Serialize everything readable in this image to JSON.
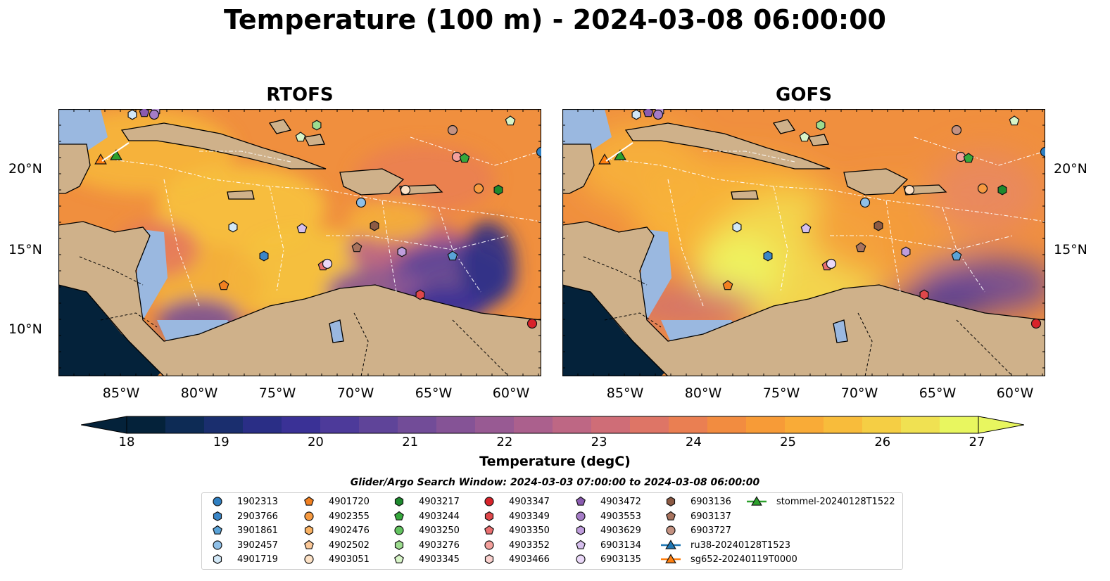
{
  "title": "Temperature (100 m) - 2024-03-08 06:00:00",
  "panels": [
    {
      "title": "RTOFS",
      "variant": "rtofs"
    },
    {
      "title": "GOFS",
      "variant": "gofs"
    }
  ],
  "lat_labels": [
    "20°N",
    "15°N",
    "10°N"
  ],
  "lon_labels": [
    "85°W",
    "80°W",
    "75°W",
    "70°W",
    "65°W",
    "60°W"
  ],
  "colorbar": {
    "label": "Temperature (degC)",
    "ticks": [
      "18",
      "19",
      "20",
      "21",
      "22",
      "23",
      "24",
      "25",
      "26",
      "27"
    ],
    "min": 18,
    "max": 27,
    "colors": [
      "#04223a",
      "#0d2b55",
      "#1a2e6e",
      "#2a2e86",
      "#3a3196",
      "#4d3a9a",
      "#5f4499",
      "#724c98",
      "#855396",
      "#985a93",
      "#ab608d",
      "#be6784",
      "#cf6d77",
      "#de7566",
      "#ea7f52",
      "#f28c40",
      "#f79b37",
      "#f9ab37",
      "#f8bc3b",
      "#f5ce44",
      "#f0e152",
      "#e8f65f"
    ]
  },
  "search_window": "Glider/Argo Search Window: 2024-03-03 07:00:00 to 2024-03-08 06:00:00",
  "legend": [
    {
      "label": "1902313",
      "shape": "circle",
      "color": "#2f7fc1"
    },
    {
      "label": "2903766",
      "shape": "hexagon",
      "color": "#3a86c7"
    },
    {
      "label": "3901861",
      "shape": "pentagon",
      "color": "#5aa3d8"
    },
    {
      "label": "3902457",
      "shape": "circle",
      "color": "#8fc0e8"
    },
    {
      "label": "4901719",
      "shape": "hexagon",
      "color": "#d2e8f7"
    },
    {
      "label": "4901720",
      "shape": "pentagon",
      "color": "#f28020"
    },
    {
      "label": "4902355",
      "shape": "circle",
      "color": "#f79a40"
    },
    {
      "label": "4902476",
      "shape": "hexagon",
      "color": "#f9b263"
    },
    {
      "label": "4902502",
      "shape": "pentagon",
      "color": "#fbc898"
    },
    {
      "label": "4903051",
      "shape": "circle",
      "color": "#fde2c6"
    },
    {
      "label": "4903217",
      "shape": "hexagon",
      "color": "#1e8a2e"
    },
    {
      "label": "4903244",
      "shape": "pentagon",
      "color": "#36a83c"
    },
    {
      "label": "4903250",
      "shape": "circle",
      "color": "#62c35f"
    },
    {
      "label": "4903276",
      "shape": "hexagon",
      "color": "#9ddc8f"
    },
    {
      "label": "4903345",
      "shape": "pentagon",
      "color": "#d8f5c8"
    },
    {
      "label": "4903347",
      "shape": "circle",
      "color": "#d8232a"
    },
    {
      "label": "4903349",
      "shape": "hexagon",
      "color": "#e0474a"
    },
    {
      "label": "4903350",
      "shape": "pentagon",
      "color": "#ea6f70"
    },
    {
      "label": "4903352",
      "shape": "circle",
      "color": "#f4a09c"
    },
    {
      "label": "4903466",
      "shape": "hexagon",
      "color": "#fbd2cf"
    },
    {
      "label": "4903472",
      "shape": "pentagon",
      "color": "#8a5bb0"
    },
    {
      "label": "4903553",
      "shape": "circle",
      "color": "#a57cc6"
    },
    {
      "label": "4903629",
      "shape": "hexagon",
      "color": "#bf9ddc"
    },
    {
      "label": "6903134",
      "shape": "pentagon",
      "color": "#d6bfed"
    },
    {
      "label": "6903135",
      "shape": "circle",
      "color": "#ead8f8"
    },
    {
      "label": "6903136",
      "shape": "hexagon",
      "color": "#8c5a44"
    },
    {
      "label": "6903137",
      "shape": "pentagon",
      "color": "#a8735e"
    },
    {
      "label": "6903727",
      "shape": "circle",
      "color": "#c49282"
    },
    {
      "label": "ru38-20240128T1523",
      "shape": "triangle-line",
      "color": "#1f77b4"
    },
    {
      "label": "sg652-20240119T0000",
      "shape": "triangle-line",
      "color": "#ff7f0e"
    },
    {
      "label": "stommel-20240128T1522",
      "shape": "triangle-line",
      "color": "#2ca02c"
    }
  ]
}
